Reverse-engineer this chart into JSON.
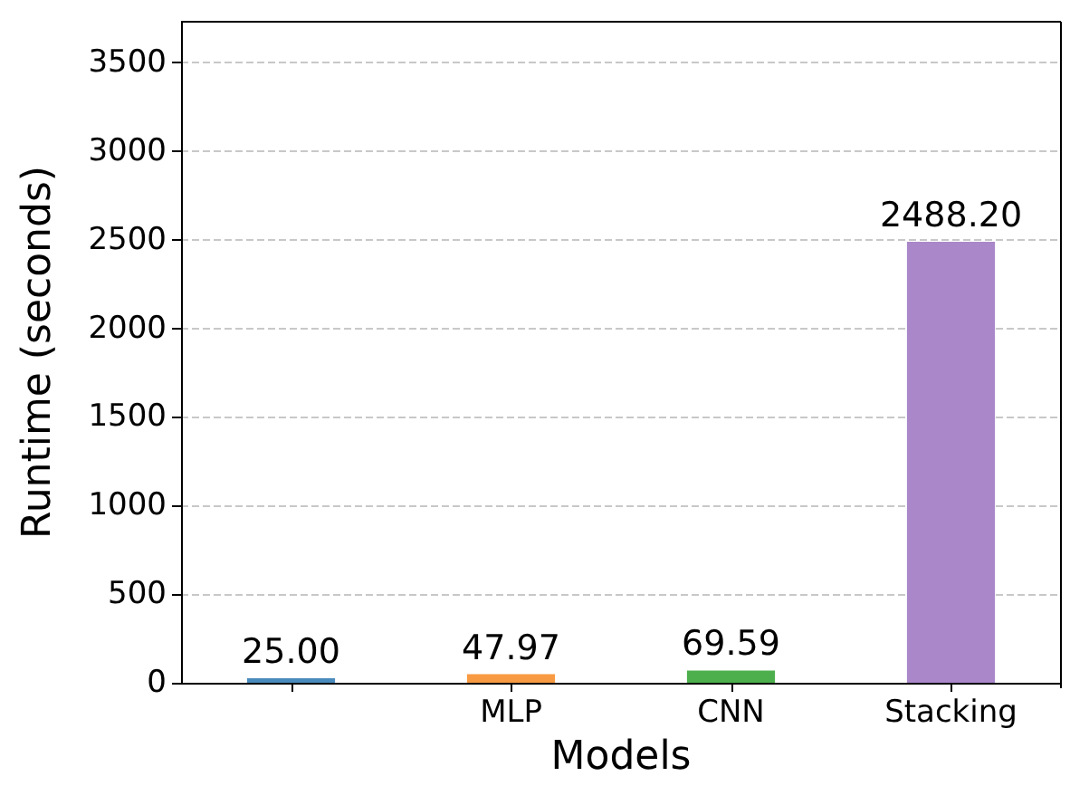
{
  "chart_data": {
    "type": "bar",
    "xlabel": "Models",
    "ylabel": "Runtime (seconds)",
    "categories": [
      null,
      "MLP",
      "CNN",
      "Stacking"
    ],
    "values": [
      25.0,
      47.97,
      69.59,
      2488.2
    ],
    "colors": [
      "#4a8bbd",
      "#f89a42",
      "#4caf4c",
      "#a987c9"
    ],
    "value_labels": [
      "25.00",
      "47.97",
      "69.59",
      "2488.20"
    ],
    "ylim": [
      0,
      3730
    ],
    "yticks": [
      0,
      500,
      1000,
      1500,
      2000,
      2500,
      3000,
      3500
    ],
    "grid": "y"
  }
}
